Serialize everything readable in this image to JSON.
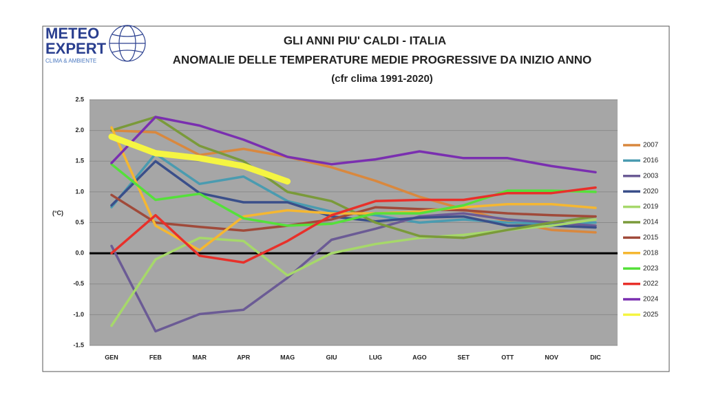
{
  "logo": {
    "line1": "METEO",
    "line2": "EXPERT",
    "tagline": "CLIMA & AMBIENTE"
  },
  "chart_data": {
    "type": "line",
    "title": "GLI ANNI PIU' CALDI - ITALIA",
    "subtitle": "ANOMALIE DELLE TEMPERATURE MEDIE PROGRESSIVE DA INIZIO ANNO",
    "note": "(cfr clima 1991-2020)",
    "y_label": "(°C)",
    "categories": [
      "GEN",
      "FEB",
      "MAR",
      "APR",
      "MAG",
      "GIU",
      "LUG",
      "AGO",
      "SET",
      "OTT",
      "NOV",
      "DIC"
    ],
    "ylim": [
      -1.5,
      2.5
    ],
    "yticks": [
      {
        "value": -1.5,
        "label": "-1.5"
      },
      {
        "value": -1,
        "label": "-1.0"
      },
      -0.5,
      {
        "value": 0,
        "label": "0.0"
      },
      0.5,
      {
        "value": 1,
        "label": "1.0"
      },
      1.5,
      {
        "value": 2,
        "label": "2.0"
      },
      2.5
    ],
    "grid": true,
    "legend": "right",
    "series": [
      {
        "name": "2007",
        "color": "#d9883e",
        "values": [
          2.0,
          1.97,
          1.6,
          1.7,
          1.57,
          1.4,
          1.18,
          0.92,
          0.72,
          0.52,
          0.38,
          0.34
        ]
      },
      {
        "name": "2016",
        "color": "#4a9bb0",
        "values": [
          0.75,
          1.62,
          1.13,
          1.25,
          0.85,
          0.68,
          0.62,
          0.5,
          0.55,
          0.5,
          0.48,
          0.5
        ]
      },
      {
        "name": "2003",
        "color": "#6b5b95",
        "values": [
          0.12,
          -1.27,
          -0.99,
          -0.92,
          -0.4,
          0.22,
          0.4,
          0.6,
          0.65,
          0.55,
          0.5,
          0.45
        ]
      },
      {
        "name": "2020",
        "color": "#3a4f8a",
        "values": [
          0.78,
          1.5,
          0.98,
          0.83,
          0.83,
          0.6,
          0.52,
          0.58,
          0.6,
          0.45,
          0.45,
          0.42
        ]
      },
      {
        "name": "2019",
        "color": "#a6d86a",
        "values": [
          -1.18,
          -0.1,
          0.25,
          0.2,
          -0.36,
          0.0,
          0.15,
          0.25,
          0.3,
          0.38,
          0.45,
          0.55
        ]
      },
      {
        "name": "2014",
        "color": "#7a9a3a",
        "values": [
          2.0,
          2.22,
          1.75,
          1.5,
          1.0,
          0.85,
          0.5,
          0.28,
          0.25,
          0.38,
          0.5,
          0.6
        ]
      },
      {
        "name": "2015",
        "color": "#a04a3a",
        "values": [
          0.95,
          0.5,
          0.43,
          0.37,
          0.45,
          0.55,
          0.75,
          0.72,
          0.7,
          0.65,
          0.62,
          0.6
        ]
      },
      {
        "name": "2018",
        "color": "#f5b731",
        "values": [
          2.05,
          0.45,
          0.05,
          0.6,
          0.7,
          0.65,
          0.65,
          0.68,
          0.75,
          0.8,
          0.8,
          0.74
        ]
      },
      {
        "name": "2023",
        "color": "#55e03a",
        "values": [
          1.45,
          0.87,
          0.97,
          0.57,
          0.45,
          0.48,
          0.65,
          0.65,
          0.78,
          1.02,
          1.02,
          1.0
        ]
      },
      {
        "name": "2022",
        "color": "#e8302a",
        "values": [
          0.0,
          0.62,
          -0.04,
          -0.15,
          0.2,
          0.62,
          0.85,
          0.87,
          0.87,
          0.98,
          0.98,
          1.07
        ]
      },
      {
        "name": "2024",
        "color": "#7a2fb0",
        "values": [
          1.47,
          2.22,
          2.08,
          1.85,
          1.57,
          1.45,
          1.53,
          1.66,
          1.55,
          1.55,
          1.42,
          1.32
        ]
      },
      {
        "name": "2025",
        "color": "#f5f542",
        "width": 9,
        "values": [
          1.9,
          1.63,
          1.55,
          1.42,
          1.17,
          null,
          null,
          null,
          null,
          null,
          null,
          null
        ]
      }
    ]
  }
}
